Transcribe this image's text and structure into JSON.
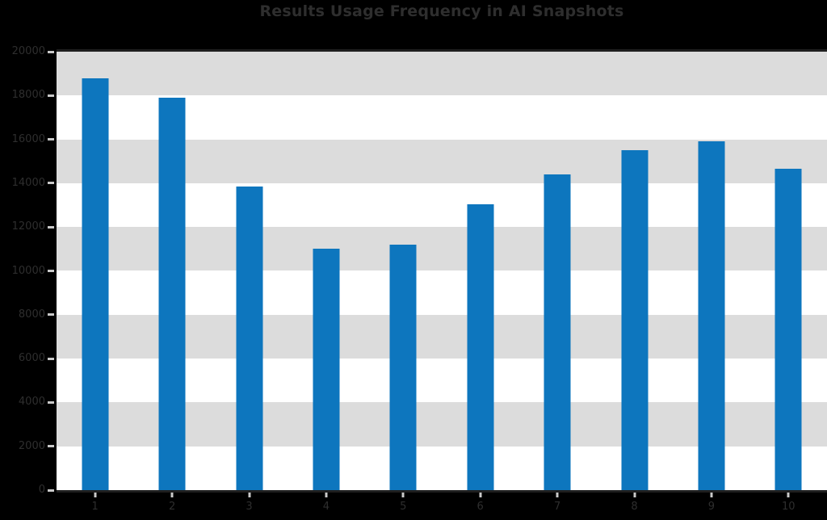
{
  "chart_data": {
    "type": "bar",
    "title": "Results Usage Frequency in AI Snapshots",
    "categories": [
      "1",
      "2",
      "3",
      "4",
      "5",
      "6",
      "7",
      "8",
      "9",
      "10"
    ],
    "values": [
      18800,
      17900,
      13850,
      11000,
      11200,
      13050,
      14400,
      15500,
      15900,
      14650
    ],
    "xlabel": "",
    "ylabel": "",
    "ylim": [
      0,
      20000
    ],
    "ytick_step": 2000,
    "ytick_labels": [
      "0",
      "2000",
      "4000",
      "6000",
      "8000",
      "10000",
      "12000",
      "14000",
      "16000",
      "18000",
      "20000"
    ],
    "legend": "none",
    "grid": "alternating-horizontal-bands",
    "band_order_from_top": [
      "gray",
      "white"
    ]
  },
  "colors": {
    "bar": "#0d76be",
    "band_gray": "#dcdcdc",
    "band_white": "#ffffff",
    "axis_line": "#1f1f1f",
    "text": "#2e2e2e",
    "tick_mark": "#c9c9c9",
    "background": "#000000"
  }
}
